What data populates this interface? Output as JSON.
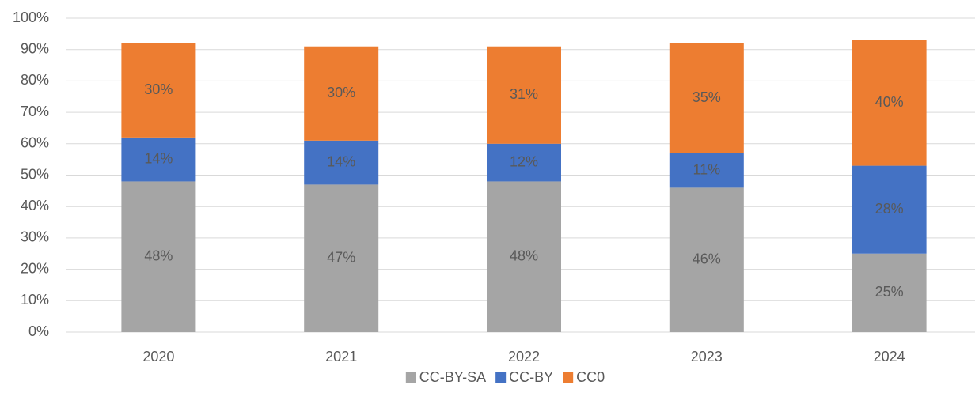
{
  "chart_data": {
    "type": "stacked_bar",
    "categories": [
      "2020",
      "2021",
      "2022",
      "2023",
      "2024"
    ],
    "series": [
      {
        "name": "CC-BY-SA",
        "color": "#a5a5a5",
        "values": [
          48,
          47,
          48,
          46,
          25
        ],
        "value_labels": [
          "48%",
          "47%",
          "48%",
          "46%",
          "25%"
        ]
      },
      {
        "name": "CC-BY",
        "color": "#4472c4",
        "values": [
          14,
          14,
          12,
          11,
          28
        ],
        "value_labels": [
          "14%",
          "14%",
          "12%",
          "11%",
          "28%"
        ]
      },
      {
        "name": "CC0",
        "color": "#ed7d31",
        "values": [
          30,
          30,
          31,
          35,
          40
        ],
        "value_labels": [
          "30%",
          "30%",
          "31%",
          "35%",
          "40%"
        ]
      }
    ],
    "ylim": [
      0,
      100
    ],
    "yticks": [
      {
        "value": 0,
        "label": "0%"
      },
      {
        "value": 10,
        "label": "10%"
      },
      {
        "value": 20,
        "label": "20%"
      },
      {
        "value": 30,
        "label": "30%"
      },
      {
        "value": 40,
        "label": "40%"
      },
      {
        "value": 50,
        "label": "50%"
      },
      {
        "value": 60,
        "label": "60%"
      },
      {
        "value": 70,
        "label": "70%"
      },
      {
        "value": 80,
        "label": "80%"
      },
      {
        "value": 90,
        "label": "90%"
      },
      {
        "value": 100,
        "label": "100%"
      }
    ],
    "grid": true,
    "legend": "bottom"
  }
}
